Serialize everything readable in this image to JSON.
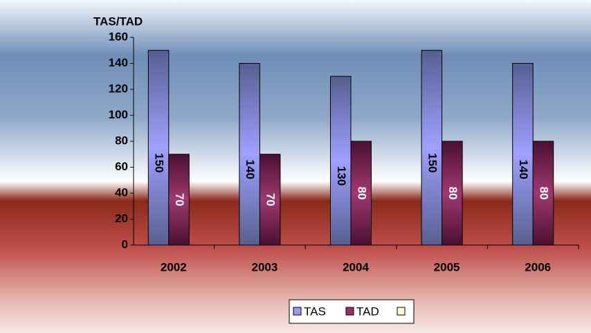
{
  "chart_data": {
    "type": "bar",
    "y_label": "TAS/TAD",
    "categories": [
      "2002",
      "2003",
      "2004",
      "2005",
      "2006"
    ],
    "series": [
      {
        "name": "TAS",
        "color": "#9999ff",
        "values": [
          150,
          140,
          130,
          150,
          140
        ]
      },
      {
        "name": "TAD",
        "color": "#993366",
        "values": [
          70,
          70,
          80,
          80,
          80
        ]
      }
    ],
    "ylim": [
      0,
      160
    ],
    "yticks": [
      0,
      20,
      40,
      60,
      80,
      100,
      120,
      140,
      160
    ],
    "grid": false,
    "legend": "bottom"
  }
}
